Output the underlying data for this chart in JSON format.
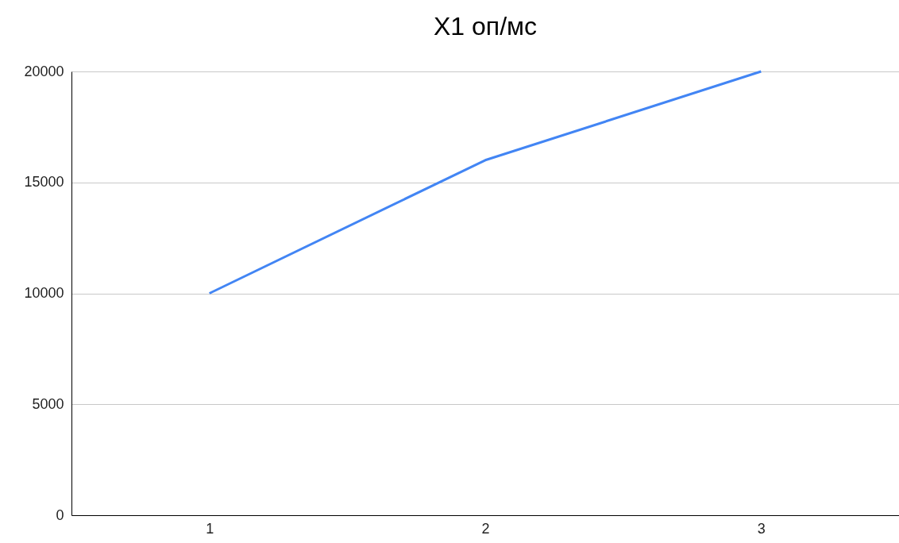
{
  "chart_data": {
    "type": "line",
    "title": "X1 оп/мс",
    "categories": [
      "1",
      "2",
      "3"
    ],
    "series": [
      {
        "color": "#4285f4",
        "values": [
          10000,
          16000,
          20000
        ]
      }
    ],
    "ylim": [
      0,
      20000
    ],
    "yticks": [
      0,
      5000,
      10000,
      15000,
      20000
    ],
    "grid": "y",
    "marker": "none",
    "line_style": "solid"
  }
}
